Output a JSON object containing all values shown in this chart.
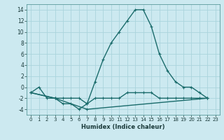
{
  "title": "",
  "xlabel": "Humidex (Indice chaleur)",
  "ylabel": "",
  "background_color": "#cce9f0",
  "grid_color": "#aad4dc",
  "line_color": "#1a6b6b",
  "xlim": [
    -0.5,
    23.5
  ],
  "ylim": [
    -5,
    15
  ],
  "xticks": [
    0,
    1,
    2,
    3,
    4,
    5,
    6,
    7,
    8,
    9,
    10,
    11,
    12,
    13,
    14,
    15,
    16,
    17,
    18,
    19,
    20,
    21,
    22,
    23
  ],
  "yticks": [
    -4,
    -2,
    0,
    2,
    4,
    6,
    8,
    10,
    12,
    14
  ],
  "series": [
    {
      "x": [
        0,
        1,
        2,
        3,
        4,
        5,
        6,
        7,
        8,
        9,
        10,
        11,
        12,
        13,
        14,
        15,
        16,
        17,
        18,
        19,
        20,
        21,
        22
      ],
      "y": [
        -1,
        0,
        -2,
        -2,
        -3,
        -3,
        -4,
        -3,
        1,
        5,
        8,
        10,
        12,
        14,
        14,
        11,
        6,
        3,
        1,
        0,
        0,
        -1,
        -2
      ]
    },
    {
      "x": [
        0,
        3,
        7,
        22
      ],
      "y": [
        -1,
        -2,
        -4,
        -2
      ]
    },
    {
      "x": [
        0,
        3,
        4,
        5,
        6,
        7,
        8,
        9,
        10,
        11,
        12,
        13,
        14,
        15,
        16,
        17,
        18,
        19,
        20,
        21,
        22
      ],
      "y": [
        -1,
        -2,
        -2,
        -2,
        -2,
        -3,
        -2,
        -2,
        -2,
        -2,
        -1,
        -1,
        -1,
        -1,
        -2,
        -2,
        -2,
        -2,
        -2,
        -2,
        -2
      ]
    }
  ],
  "xlabel_fontsize": 6.0,
  "xlabel_fontweight": "bold",
  "tick_fontsize": 5.0,
  "linewidth": 1.0,
  "markersize": 3.5
}
